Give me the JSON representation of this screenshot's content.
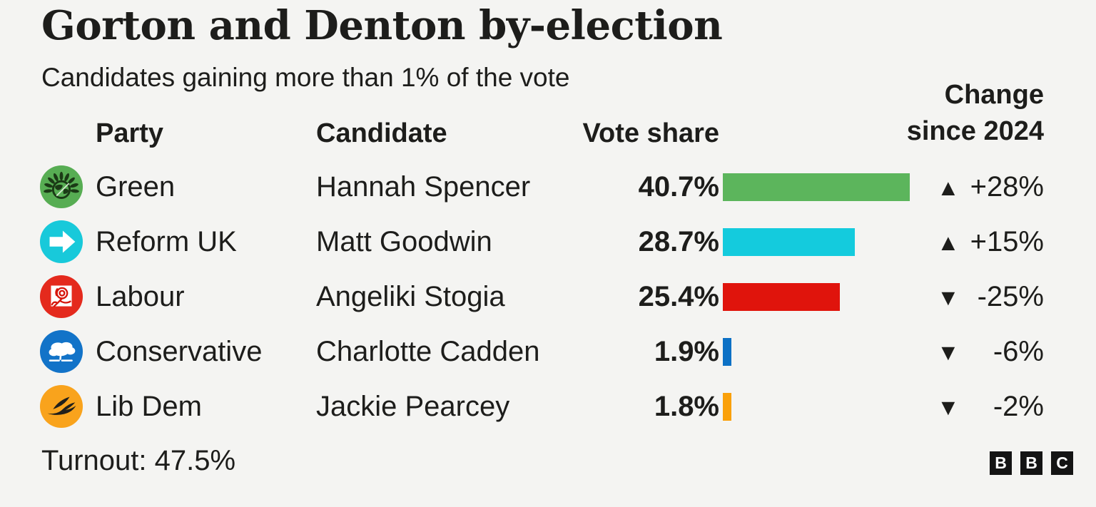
{
  "title": "Gorton and Denton by-election",
  "subtitle": "Candidates gaining more than 1% of the vote",
  "columns": {
    "party": "Party",
    "candidate": "Candidate",
    "vote_share": "Vote share",
    "change_line1": "Change",
    "change_line2": "since 2024"
  },
  "rows": [
    {
      "party": "Green",
      "candidate": "Hannah Spencer",
      "vote_share": "40.7%",
      "vote_share_value": 40.7,
      "bar_color": "#5cb55c",
      "icon_bg": "#57ad53",
      "change_arrow": "▲",
      "change": "+28%",
      "change_value": 28
    },
    {
      "party": "Reform UK",
      "candidate": "Matt Goodwin",
      "vote_share": "28.7%",
      "vote_share_value": 28.7,
      "bar_color": "#14cbdd",
      "icon_bg": "#18c9da",
      "change_arrow": "▲",
      "change": "+15%",
      "change_value": 15
    },
    {
      "party": "Labour",
      "candidate": "Angeliki Stogia",
      "vote_share": "25.4%",
      "vote_share_value": 25.4,
      "bar_color": "#e0140c",
      "icon_bg": "#e42a1d",
      "change_arrow": "▼",
      "change": "-25%",
      "change_value": -25
    },
    {
      "party": "Conservative",
      "candidate": "Charlotte Cadden",
      "vote_share": "1.9%",
      "vote_share_value": 1.9,
      "bar_color": "#0d71c5",
      "icon_bg": "#1273c8",
      "change_arrow": "▼",
      "change": "-6%",
      "change_value": -6
    },
    {
      "party": "Lib Dem",
      "candidate": "Jackie Pearcey",
      "vote_share": "1.8%",
      "vote_share_value": 1.8,
      "bar_color": "#faa00a",
      "icon_bg": "#f9a31c",
      "change_arrow": "▼",
      "change": "-2%",
      "change_value": -2
    }
  ],
  "turnout": "Turnout: 47.5%",
  "logo": {
    "letters": [
      "B",
      "B",
      "C"
    ]
  },
  "colors": {
    "background": "#f4f4f2",
    "text": "#1d1d1b"
  },
  "chart_data": {
    "type": "bar",
    "orientation": "horizontal",
    "title": "Gorton and Denton by-election",
    "subtitle": "Candidates gaining more than 1% of the vote",
    "categories": [
      "Green",
      "Reform UK",
      "Labour",
      "Conservative",
      "Lib Dem"
    ],
    "candidates": [
      "Hannah Spencer",
      "Matt Goodwin",
      "Angeliki Stogia",
      "Charlotte Cadden",
      "Jackie Pearcey"
    ],
    "series": [
      {
        "name": "Vote share (%)",
        "values": [
          40.7,
          28.7,
          25.4,
          1.9,
          1.8
        ]
      },
      {
        "name": "Change since 2024 (percentage points)",
        "values": [
          28,
          15,
          -25,
          -6,
          -2
        ]
      }
    ],
    "bar_colors": [
      "#5cb55c",
      "#14cbdd",
      "#e0140c",
      "#0d71c5",
      "#faa00a"
    ],
    "xlim": [
      0,
      42
    ],
    "grid": false,
    "legend": "none",
    "turnout_pct": 47.5
  }
}
